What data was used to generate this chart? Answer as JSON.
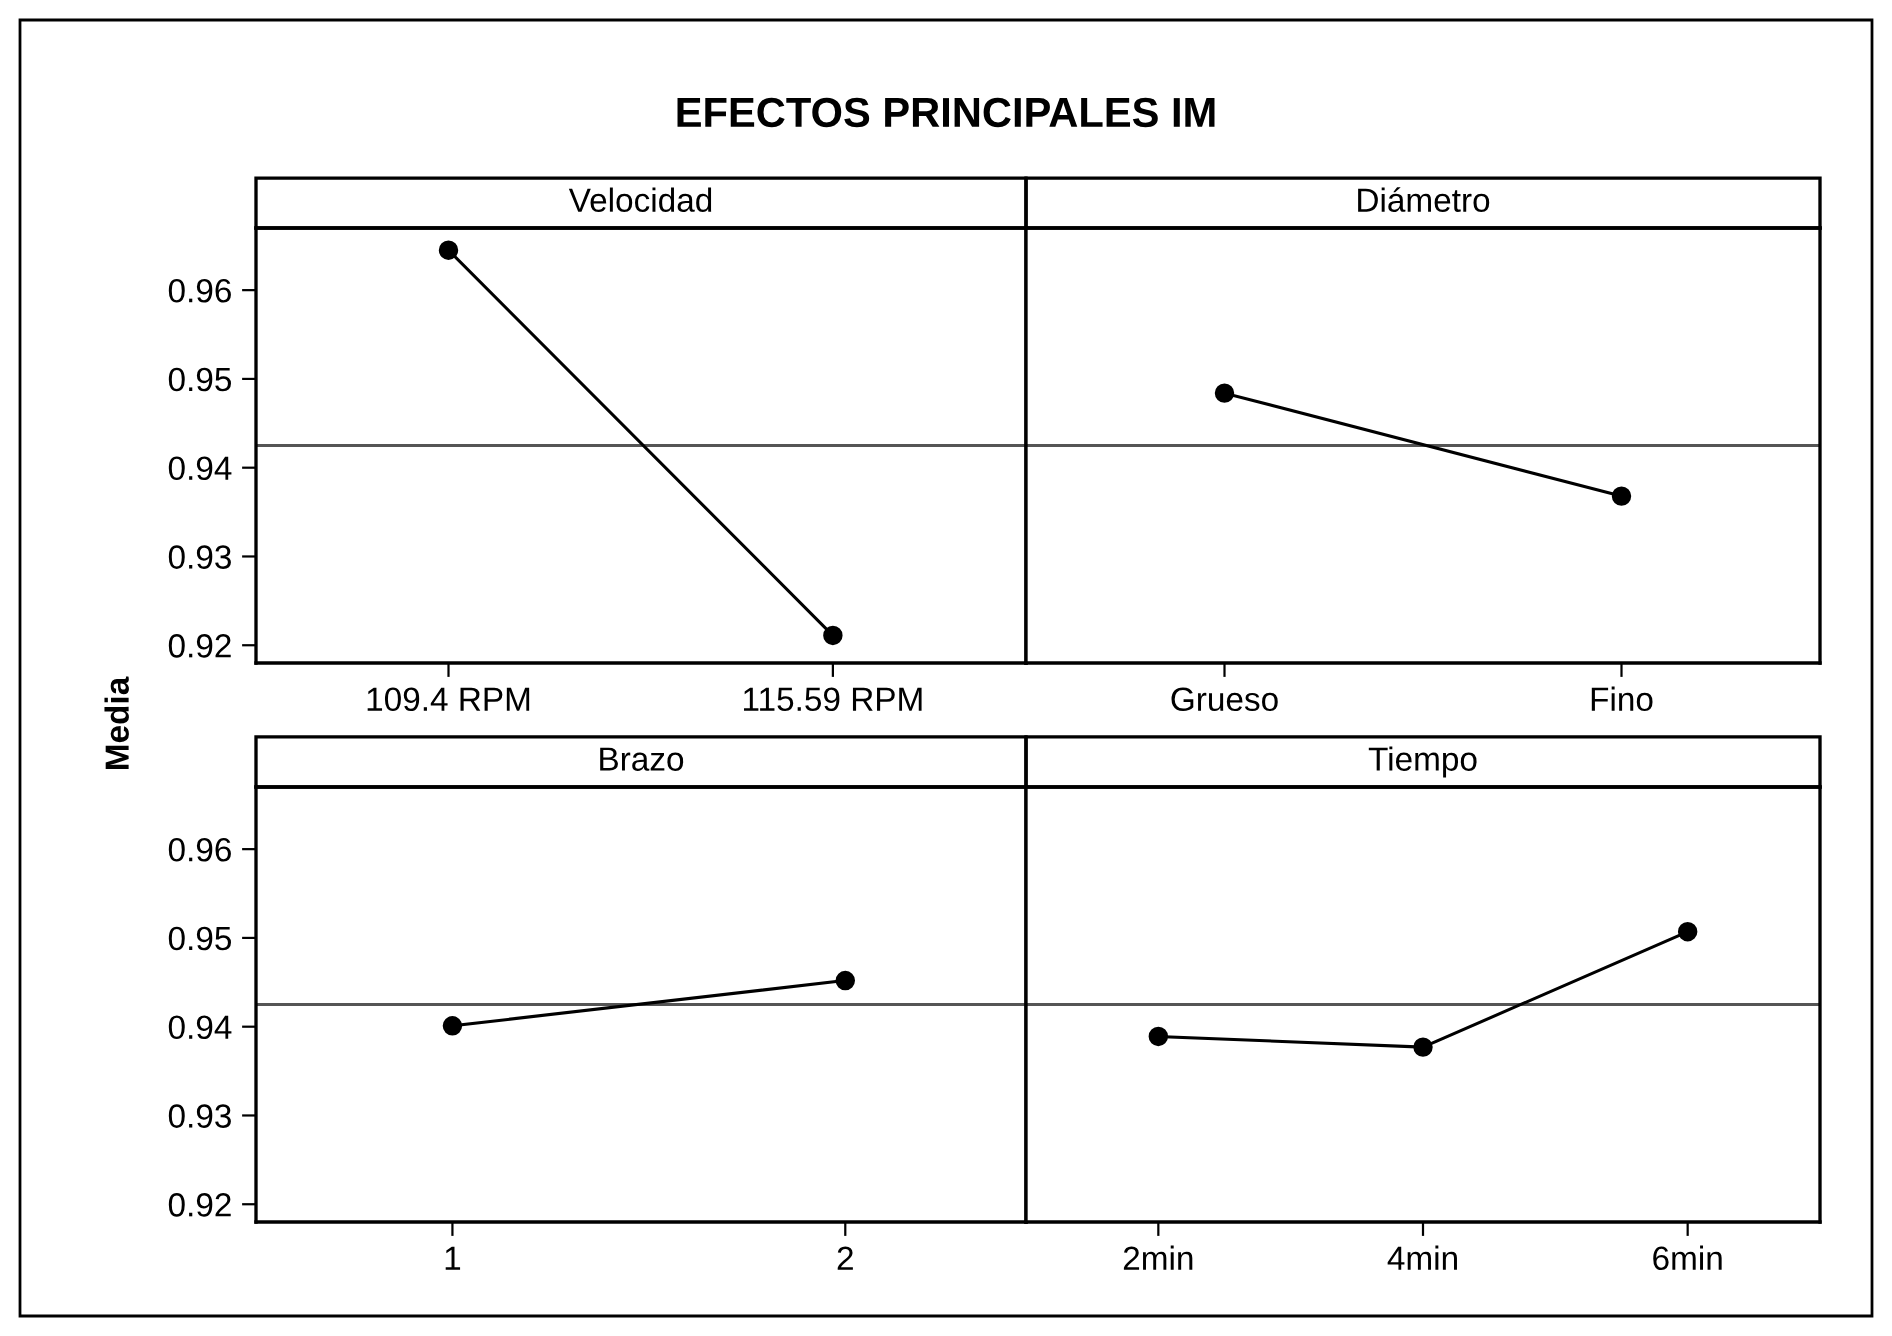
{
  "chart_data": [
    {
      "type": "line",
      "title": "Velocidad",
      "annotations": [
        "EFECTOS PRINCIPALES IM"
      ],
      "ylabel": "Media",
      "x": [
        109.4,
        115.59
      ],
      "xlim": [
        106.3,
        118.7
      ],
      "xticks": [
        {
          "value": 109.4,
          "label": "109.4 RPM"
        },
        {
          "value": 115.59,
          "label": "115.59 RPM"
        }
      ],
      "series": [
        {
          "color": "#000000",
          "values": [
            0.9645,
            0.9211
          ]
        }
      ],
      "ylim": [
        0.918,
        0.967
      ],
      "yticks": [
        0.92,
        0.93,
        0.94,
        0.95,
        0.96
      ],
      "ref_lines": [
        {
          "axis": "y",
          "value": 0.9425,
          "color": "#555555"
        }
      ],
      "marker": "circle",
      "grid": false,
      "legend": false
    },
    {
      "type": "line",
      "title": "Diámetro",
      "categories": [
        "Grueso",
        "Fino"
      ],
      "series": [
        {
          "color": "#000000",
          "values": [
            0.9484,
            0.9368
          ]
        }
      ],
      "ylim": [
        0.918,
        0.967
      ],
      "yticks": [
        0.92,
        0.93,
        0.94,
        0.95,
        0.96
      ],
      "ref_lines": [
        {
          "axis": "y",
          "value": 0.9425,
          "color": "#555555"
        }
      ],
      "marker": "circle",
      "grid": false,
      "legend": false,
      "tick_labels": "x"
    },
    {
      "type": "line",
      "title": "Brazo",
      "x": [
        1,
        2
      ],
      "xlim": [
        0.5,
        2.46
      ],
      "xticks": [
        1,
        2
      ],
      "series": [
        {
          "color": "#000000",
          "values": [
            0.9401,
            0.9452
          ]
        }
      ],
      "ylim": [
        0.918,
        0.967
      ],
      "yticks": [
        0.92,
        0.93,
        0.94,
        0.95,
        0.96
      ],
      "ref_lines": [
        {
          "axis": "y",
          "value": 0.9425,
          "color": "#555555"
        }
      ],
      "marker": "circle",
      "grid": false,
      "legend": false
    },
    {
      "type": "line",
      "title": "Tiempo",
      "categories": [
        "2min",
        "4min",
        "6min"
      ],
      "series": [
        {
          "color": "#000000",
          "values": [
            0.9389,
            0.9377,
            0.9507
          ]
        }
      ],
      "ylim": [
        0.918,
        0.967
      ],
      "yticks": [
        0.92,
        0.93,
        0.94,
        0.95,
        0.96
      ],
      "ref_lines": [
        {
          "axis": "y",
          "value": 0.9425,
          "color": "#555555"
        }
      ],
      "marker": "circle",
      "grid": false,
      "legend": false,
      "tick_labels": "x"
    }
  ]
}
